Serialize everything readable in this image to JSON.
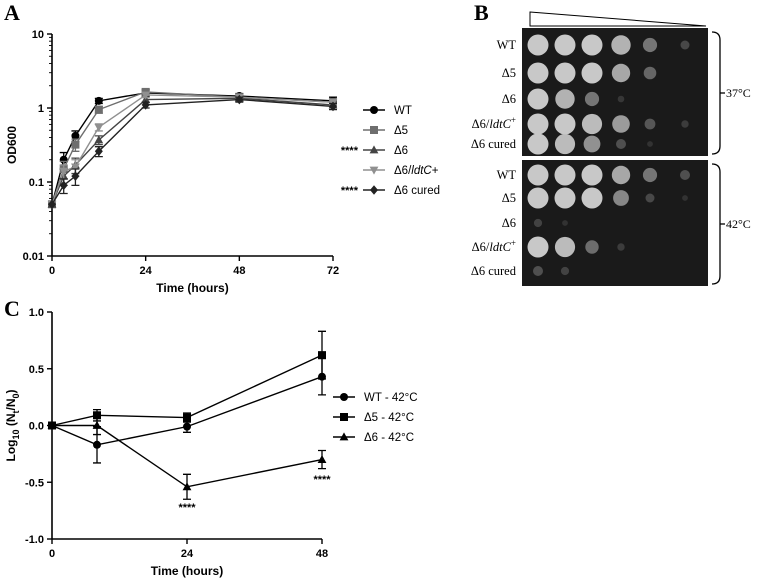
{
  "panels": {
    "a": "A",
    "b": "B",
    "c": "C"
  },
  "chart_data": [
    {
      "panel": "A",
      "type": "line",
      "xlabel": "Time (hours)",
      "ylabel": "OD600",
      "xlim": [
        0,
        72
      ],
      "ylim": [
        0.01,
        10
      ],
      "y_scale": "log",
      "xticks": [
        0,
        24,
        48,
        72
      ],
      "yticks": [
        0.01,
        0.1,
        1,
        10
      ],
      "ytick_labels": [
        "0.01",
        "0.1",
        "1",
        "10"
      ],
      "legend_position": "right",
      "series": [
        {
          "name": "WT",
          "marker": "circle",
          "color": "#000000",
          "significance": "",
          "x": [
            0,
            3,
            6,
            12,
            24,
            48,
            72
          ],
          "y": [
            0.05,
            0.2,
            0.42,
            1.25,
            1.6,
            1.45,
            1.25
          ],
          "err": [
            0,
            0.05,
            0.07,
            0.1,
            0.15,
            0.12,
            0.15
          ]
        },
        {
          "name": "Δ5",
          "marker": "square",
          "color": "#6e6e6e",
          "significance": "",
          "x": [
            0,
            3,
            6,
            12,
            24,
            48,
            72
          ],
          "y": [
            0.05,
            0.15,
            0.32,
            0.95,
            1.65,
            1.4,
            1.2
          ],
          "err": [
            0,
            0.04,
            0.06,
            0.1,
            0.15,
            0.12,
            0.12
          ]
        },
        {
          "name": "Δ6",
          "marker": "triangle",
          "color": "#444444",
          "significance": "****",
          "x": [
            0,
            3,
            6,
            12,
            24,
            48,
            72
          ],
          "y": [
            0.05,
            0.12,
            0.17,
            0.37,
            1.3,
            1.35,
            1.1
          ],
          "err": [
            0,
            0.03,
            0.04,
            0.05,
            0.12,
            0.1,
            0.1
          ]
        },
        {
          "name": "Δ6/ldtC+",
          "marker": "triangle-down",
          "color": "#909090",
          "significance": "",
          "x": [
            0,
            3,
            6,
            12,
            24,
            48,
            72
          ],
          "y": [
            0.05,
            0.14,
            0.16,
            0.55,
            1.5,
            1.4,
            1.2
          ],
          "err": [
            0,
            0.03,
            0.04,
            0.06,
            0.12,
            0.1,
            0.1
          ]
        },
        {
          "name": "Δ6 cured",
          "marker": "diamond",
          "color": "#222222",
          "significance": "****",
          "x": [
            0,
            3,
            6,
            12,
            24,
            48,
            72
          ],
          "y": [
            0.05,
            0.09,
            0.12,
            0.26,
            1.1,
            1.3,
            1.05
          ],
          "err": [
            0,
            0.02,
            0.03,
            0.04,
            0.1,
            0.1,
            0.1
          ]
        }
      ]
    },
    {
      "panel": "B",
      "type": "other",
      "description": "spot dilution plates",
      "row_labels": [
        "WT",
        "Δ5",
        "Δ6",
        "Δ6/ldtC+",
        "Δ6 cured"
      ],
      "temperatures": [
        "37°C",
        "42°C"
      ],
      "growth_37": [
        [
          1,
          1,
          1,
          0.9,
          0.6,
          0.3
        ],
        [
          1,
          1,
          1,
          0.85,
          0.5,
          0.0
        ],
        [
          1,
          0.9,
          0.6,
          0.15,
          0,
          0
        ],
        [
          1,
          1,
          0.95,
          0.8,
          0.4,
          0.2
        ],
        [
          1,
          0.95,
          0.75,
          0.35,
          0.1,
          0
        ]
      ],
      "growth_42": [
        [
          1,
          1,
          1,
          0.85,
          0.6,
          0.35
        ],
        [
          1,
          1,
          1,
          0.7,
          0.3,
          0.1
        ],
        [
          0.25,
          0.1,
          0,
          0,
          0,
          0
        ],
        [
          1,
          0.95,
          0.55,
          0.2,
          0,
          0
        ],
        [
          0.35,
          0.25,
          0,
          0,
          0,
          0
        ]
      ]
    },
    {
      "panel": "C",
      "type": "line",
      "xlabel": "Time (hours)",
      "ylabel": "Log10 (Nt/N0)",
      "ylabel_parts": {
        "log": "Log",
        "log_sub": "10",
        "open": " (N",
        "t_sub": "t",
        "mid": "/N",
        "zero_sub": "0",
        "close": ")"
      },
      "xlim": [
        0,
        48
      ],
      "ylim": [
        -1.0,
        1.0
      ],
      "xticks": [
        0,
        24,
        48
      ],
      "yticks": [
        -1.0,
        -0.5,
        0.0,
        0.5,
        1.0
      ],
      "ytick_labels": [
        "-1.0",
        "-0.5",
        "0.0",
        "0.5",
        "1.0"
      ],
      "legend_position": "right",
      "series": [
        {
          "name": "WT - 42°C",
          "marker": "circle",
          "color": "#000000",
          "x": [
            0,
            8,
            24,
            48
          ],
          "y": [
            0.0,
            -0.17,
            -0.01,
            0.43
          ],
          "err": [
            0,
            0.16,
            0.05,
            0.16
          ]
        },
        {
          "name": "Δ5 - 42°C",
          "marker": "square",
          "color": "#000000",
          "x": [
            0,
            8,
            24,
            48
          ],
          "y": [
            0.0,
            0.09,
            0.07,
            0.62
          ],
          "err": [
            0,
            0.05,
            0.04,
            0.21
          ]
        },
        {
          "name": "Δ6 - 42°C",
          "marker": "triangle",
          "color": "#000000",
          "x": [
            0,
            8,
            24,
            48
          ],
          "y": [
            0.0,
            0.0,
            -0.54,
            -0.3
          ],
          "err": [
            0,
            0.08,
            0.11,
            0.08
          ]
        }
      ],
      "annotations": [
        {
          "text": "****",
          "x": 24,
          "y": -0.72
        },
        {
          "text": "****",
          "x": 48,
          "y": -0.47
        }
      ]
    }
  ]
}
